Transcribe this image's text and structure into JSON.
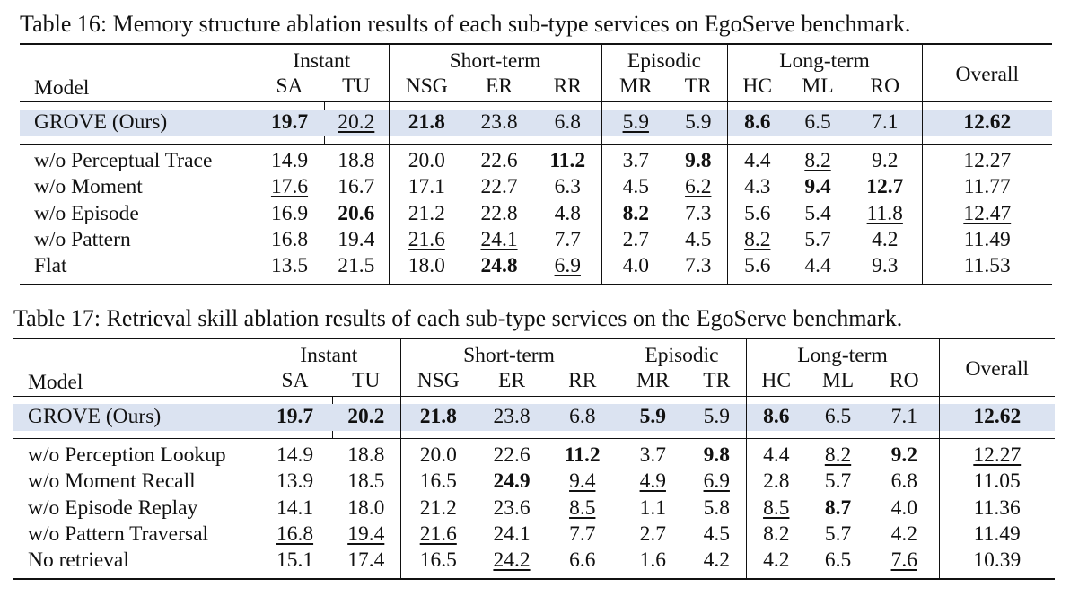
{
  "tables": [
    {
      "caption": "Table 16: Memory structure ablation results of each sub-type services on EgoServe benchmark.",
      "model_header": "Model",
      "overall_header": "Overall",
      "groups": [
        {
          "label": "Instant",
          "subs": [
            "SA",
            "TU"
          ]
        },
        {
          "label": "Short-term",
          "subs": [
            "NSG",
            "ER",
            "RR"
          ]
        },
        {
          "label": "Episodic",
          "subs": [
            "MR",
            "TR"
          ]
        },
        {
          "label": "Long-term",
          "subs": [
            "HC",
            "ML",
            "RO"
          ]
        }
      ],
      "main_row": {
        "model": "GROVE (Ours)",
        "cells": [
          {
            "v": "19.7",
            "s": "b"
          },
          {
            "v": "20.2",
            "s": "u"
          },
          {
            "v": "21.8",
            "s": "b"
          },
          {
            "v": "23.8",
            "s": ""
          },
          {
            "v": "6.8",
            "s": ""
          },
          {
            "v": "5.9",
            "s": "u"
          },
          {
            "v": "5.9",
            "s": ""
          },
          {
            "v": "8.6",
            "s": "b"
          },
          {
            "v": "6.5",
            "s": ""
          },
          {
            "v": "7.1",
            "s": ""
          },
          {
            "v": "12.62",
            "s": "b"
          }
        ]
      },
      "rows": [
        {
          "model": "w/o Perceptual Trace",
          "cells": [
            {
              "v": "14.9",
              "s": ""
            },
            {
              "v": "18.8",
              "s": ""
            },
            {
              "v": "20.0",
              "s": ""
            },
            {
              "v": "22.6",
              "s": ""
            },
            {
              "v": "11.2",
              "s": "b"
            },
            {
              "v": "3.7",
              "s": ""
            },
            {
              "v": "9.8",
              "s": "b"
            },
            {
              "v": "4.4",
              "s": ""
            },
            {
              "v": "8.2",
              "s": "u"
            },
            {
              "v": "9.2",
              "s": ""
            },
            {
              "v": "12.27",
              "s": ""
            }
          ]
        },
        {
          "model": "w/o Moment",
          "cells": [
            {
              "v": "17.6",
              "s": "u"
            },
            {
              "v": "16.7",
              "s": ""
            },
            {
              "v": "17.1",
              "s": ""
            },
            {
              "v": "22.7",
              "s": ""
            },
            {
              "v": "6.3",
              "s": ""
            },
            {
              "v": "4.5",
              "s": ""
            },
            {
              "v": "6.2",
              "s": "u"
            },
            {
              "v": "4.3",
              "s": ""
            },
            {
              "v": "9.4",
              "s": "b"
            },
            {
              "v": "12.7",
              "s": "b"
            },
            {
              "v": "11.77",
              "s": ""
            }
          ]
        },
        {
          "model": "w/o Episode",
          "cells": [
            {
              "v": "16.9",
              "s": ""
            },
            {
              "v": "20.6",
              "s": "b"
            },
            {
              "v": "21.2",
              "s": ""
            },
            {
              "v": "22.8",
              "s": ""
            },
            {
              "v": "4.8",
              "s": ""
            },
            {
              "v": "8.2",
              "s": "b"
            },
            {
              "v": "7.3",
              "s": ""
            },
            {
              "v": "5.6",
              "s": ""
            },
            {
              "v": "5.4",
              "s": ""
            },
            {
              "v": "11.8",
              "s": "u"
            },
            {
              "v": "12.47",
              "s": "u"
            }
          ]
        },
        {
          "model": "w/o Pattern",
          "cells": [
            {
              "v": "16.8",
              "s": ""
            },
            {
              "v": "19.4",
              "s": ""
            },
            {
              "v": "21.6",
              "s": "u"
            },
            {
              "v": "24.1",
              "s": "u"
            },
            {
              "v": "7.7",
              "s": ""
            },
            {
              "v": "2.7",
              "s": ""
            },
            {
              "v": "4.5",
              "s": ""
            },
            {
              "v": "8.2",
              "s": "u"
            },
            {
              "v": "5.7",
              "s": ""
            },
            {
              "v": "4.2",
              "s": ""
            },
            {
              "v": "11.49",
              "s": ""
            }
          ]
        },
        {
          "model": "Flat",
          "cells": [
            {
              "v": "13.5",
              "s": ""
            },
            {
              "v": "21.5",
              "s": ""
            },
            {
              "v": "18.0",
              "s": ""
            },
            {
              "v": "24.8",
              "s": "b"
            },
            {
              "v": "6.9",
              "s": "u"
            },
            {
              "v": "4.0",
              "s": ""
            },
            {
              "v": "7.3",
              "s": ""
            },
            {
              "v": "5.6",
              "s": ""
            },
            {
              "v": "4.4",
              "s": ""
            },
            {
              "v": "9.3",
              "s": ""
            },
            {
              "v": "11.53",
              "s": ""
            }
          ]
        }
      ]
    },
    {
      "caption": "Table 17: Retrieval skill ablation results of each sub-type services on the EgoServe benchmark.",
      "model_header": "Model",
      "overall_header": "Overall",
      "groups": [
        {
          "label": "Instant",
          "subs": [
            "SA",
            "TU"
          ]
        },
        {
          "label": "Short-term",
          "subs": [
            "NSG",
            "ER",
            "RR"
          ]
        },
        {
          "label": "Episodic",
          "subs": [
            "MR",
            "TR"
          ]
        },
        {
          "label": "Long-term",
          "subs": [
            "HC",
            "ML",
            "RO"
          ]
        }
      ],
      "main_row": {
        "model": "GROVE (Ours)",
        "cells": [
          {
            "v": "19.7",
            "s": "b"
          },
          {
            "v": "20.2",
            "s": "b"
          },
          {
            "v": "21.8",
            "s": "b"
          },
          {
            "v": "23.8",
            "s": ""
          },
          {
            "v": "6.8",
            "s": ""
          },
          {
            "v": "5.9",
            "s": "b"
          },
          {
            "v": "5.9",
            "s": ""
          },
          {
            "v": "8.6",
            "s": "b"
          },
          {
            "v": "6.5",
            "s": ""
          },
          {
            "v": "7.1",
            "s": ""
          },
          {
            "v": "12.62",
            "s": "b"
          }
        ]
      },
      "rows": [
        {
          "model": "w/o Perception Lookup",
          "cells": [
            {
              "v": "14.9",
              "s": ""
            },
            {
              "v": "18.8",
              "s": ""
            },
            {
              "v": "20.0",
              "s": ""
            },
            {
              "v": "22.6",
              "s": ""
            },
            {
              "v": "11.2",
              "s": "b"
            },
            {
              "v": "3.7",
              "s": ""
            },
            {
              "v": "9.8",
              "s": "b"
            },
            {
              "v": "4.4",
              "s": ""
            },
            {
              "v": "8.2",
              "s": "u"
            },
            {
              "v": "9.2",
              "s": "b"
            },
            {
              "v": "12.27",
              "s": "u"
            }
          ]
        },
        {
          "model": "w/o Moment Recall",
          "cells": [
            {
              "v": "13.9",
              "s": ""
            },
            {
              "v": "18.5",
              "s": ""
            },
            {
              "v": "16.5",
              "s": ""
            },
            {
              "v": "24.9",
              "s": "b"
            },
            {
              "v": "9.4",
              "s": "u"
            },
            {
              "v": "4.9",
              "s": "u"
            },
            {
              "v": "6.9",
              "s": "u"
            },
            {
              "v": "2.8",
              "s": ""
            },
            {
              "v": "5.7",
              "s": ""
            },
            {
              "v": "6.8",
              "s": ""
            },
            {
              "v": "11.05",
              "s": ""
            }
          ]
        },
        {
          "model": "w/o Episode Replay",
          "cells": [
            {
              "v": "14.1",
              "s": ""
            },
            {
              "v": "18.0",
              "s": ""
            },
            {
              "v": "21.2",
              "s": ""
            },
            {
              "v": "23.6",
              "s": ""
            },
            {
              "v": "8.5",
              "s": "u"
            },
            {
              "v": "1.1",
              "s": ""
            },
            {
              "v": "5.8",
              "s": ""
            },
            {
              "v": "8.5",
              "s": "u"
            },
            {
              "v": "8.7",
              "s": "b"
            },
            {
              "v": "4.0",
              "s": ""
            },
            {
              "v": "11.36",
              "s": ""
            }
          ]
        },
        {
          "model": "w/o Pattern Traversal",
          "cells": [
            {
              "v": "16.8",
              "s": "u"
            },
            {
              "v": "19.4",
              "s": "u"
            },
            {
              "v": "21.6",
              "s": "u"
            },
            {
              "v": "24.1",
              "s": ""
            },
            {
              "v": "7.7",
              "s": ""
            },
            {
              "v": "2.7",
              "s": ""
            },
            {
              "v": "4.5",
              "s": ""
            },
            {
              "v": "8.2",
              "s": ""
            },
            {
              "v": "5.7",
              "s": ""
            },
            {
              "v": "4.2",
              "s": ""
            },
            {
              "v": "11.49",
              "s": ""
            }
          ]
        },
        {
          "model": "No retrieval",
          "cells": [
            {
              "v": "15.1",
              "s": ""
            },
            {
              "v": "17.4",
              "s": ""
            },
            {
              "v": "16.5",
              "s": ""
            },
            {
              "v": "24.2",
              "s": "u"
            },
            {
              "v": "6.6",
              "s": ""
            },
            {
              "v": "1.6",
              "s": ""
            },
            {
              "v": "4.2",
              "s": ""
            },
            {
              "v": "4.2",
              "s": ""
            },
            {
              "v": "6.5",
              "s": ""
            },
            {
              "v": "7.6",
              "s": "u"
            },
            {
              "v": "10.39",
              "s": ""
            }
          ]
        }
      ]
    }
  ]
}
